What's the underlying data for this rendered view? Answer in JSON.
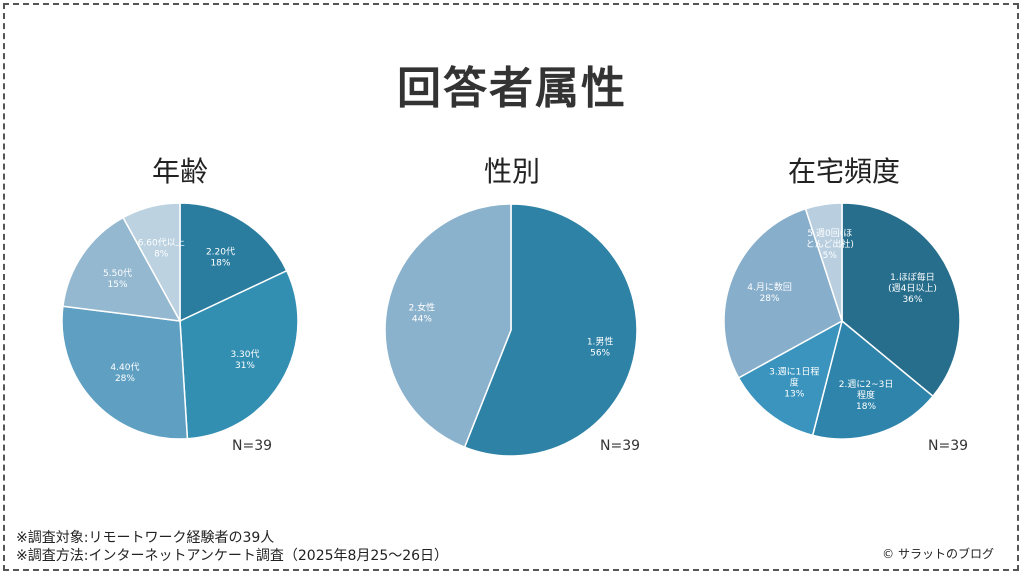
{
  "title": "回答者属性",
  "charts": [
    {
      "title": "年齢",
      "n": "N=39"
    },
    {
      "title": "性別",
      "n": "N=39"
    },
    {
      "title": "在宅頻度",
      "n": "N=39"
    }
  ],
  "chart_data": [
    {
      "type": "pie",
      "title": "年齢",
      "slices": [
        {
          "label": [
            "2.20代",
            "18%"
          ],
          "value": 18,
          "color": "#2b7da0"
        },
        {
          "label": [
            "3.30代",
            "31%"
          ],
          "value": 31,
          "color": "#338fb2"
        },
        {
          "label": [
            "4.40代",
            "28%"
          ],
          "value": 28,
          "color": "#5e9fc2"
        },
        {
          "label": [
            "5.50代",
            "15%"
          ],
          "value": 15,
          "color": "#93b8d0"
        },
        {
          "label": [
            "6.60代以上",
            "8%"
          ],
          "value": 8,
          "color": "#bcd2e1"
        }
      ]
    },
    {
      "type": "pie",
      "title": "性別",
      "slices": [
        {
          "label": [
            "1.男性",
            "56%"
          ],
          "value": 56,
          "color": "#2e82a6"
        },
        {
          "label": [
            "2.女性",
            "44%"
          ],
          "value": 44,
          "color": "#8bb2cc"
        }
      ]
    },
    {
      "type": "pie",
      "title": "在宅頻度",
      "slices": [
        {
          "label": [
            "1.ほぼ毎日",
            "(週4日以上)",
            "36%"
          ],
          "value": 36,
          "color": "#276e8d"
        },
        {
          "label": [
            "2.週に2~3日",
            "程度",
            "18%"
          ],
          "value": 18,
          "color": "#2e84aa"
        },
        {
          "label": [
            "3.週に1日程",
            "度",
            "13%"
          ],
          "value": 13,
          "color": "#3a94bd"
        },
        {
          "label": [
            "4.月に数回",
            "28%"
          ],
          "value": 28,
          "color": "#87aecb"
        },
        {
          "label": [
            "5.週0回(ほ",
            "とんど出社)",
            "5%"
          ],
          "value": 5,
          "color": "#b9cfdf"
        }
      ]
    }
  ],
  "footnotes": [
    "※調査対象:リモートワーク経験者の39人",
    "※調査方法:インターネットアンケート調査（2025年8月25～26日）"
  ],
  "copyright": "© サラットのブログ"
}
